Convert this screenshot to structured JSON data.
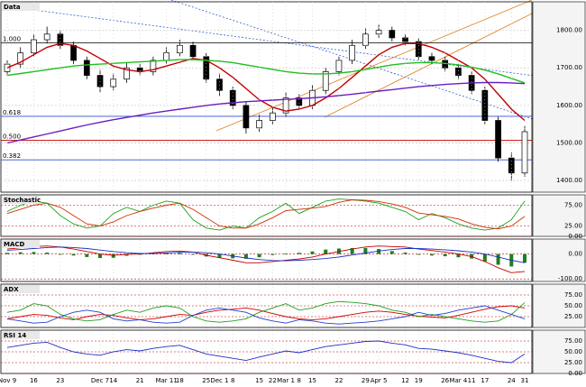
{
  "chart_data": [
    {
      "type": "candlestick",
      "title": "Data",
      "categories": [
        "Nov 9",
        null,
        "16",
        null,
        "23",
        null,
        null,
        "Dec 7",
        "14",
        null,
        "21",
        null,
        "Mar 11",
        "18",
        null,
        "25",
        "Dec 1",
        "8",
        null,
        "15",
        "22",
        "Mar 1",
        "8",
        "15",
        null,
        "22",
        null,
        "29",
        "Apr 5",
        null,
        "12",
        "19",
        null,
        "26",
        "Mar 4",
        "11",
        "17",
        null,
        "24",
        "31"
      ],
      "open": [
        1690,
        1710,
        1740,
        1775,
        1790,
        1760,
        1720,
        1680,
        1650,
        1670,
        1700,
        1690,
        1720,
        1740,
        1760,
        1730,
        1670,
        1640,
        1600,
        1540,
        1560,
        1580,
        1620,
        1600,
        1640,
        1690,
        1720,
        1760,
        1790,
        1800,
        1780,
        1770,
        1730,
        1720,
        1700,
        1680,
        1640,
        1560,
        1460,
        1420
      ],
      "high": [
        1720,
        1755,
        1790,
        1810,
        1800,
        1770,
        1730,
        1695,
        1685,
        1715,
        1710,
        1730,
        1755,
        1775,
        1770,
        1740,
        1685,
        1650,
        1610,
        1575,
        1595,
        1635,
        1630,
        1655,
        1700,
        1730,
        1775,
        1805,
        1815,
        1810,
        1790,
        1780,
        1740,
        1730,
        1710,
        1690,
        1650,
        1570,
        1475,
        1545
      ],
      "low": [
        1680,
        1700,
        1730,
        1765,
        1750,
        1710,
        1670,
        1635,
        1640,
        1660,
        1680,
        1680,
        1710,
        1730,
        1720,
        1660,
        1625,
        1590,
        1525,
        1530,
        1550,
        1570,
        1590,
        1590,
        1630,
        1680,
        1710,
        1750,
        1780,
        1770,
        1760,
        1720,
        1710,
        1690,
        1670,
        1630,
        1550,
        1450,
        1400,
        1410
      ],
      "close": [
        1710,
        1740,
        1775,
        1790,
        1760,
        1720,
        1680,
        1650,
        1670,
        1700,
        1690,
        1720,
        1740,
        1760,
        1730,
        1670,
        1640,
        1600,
        1540,
        1560,
        1580,
        1620,
        1600,
        1640,
        1690,
        1720,
        1760,
        1790,
        1800,
        1780,
        1770,
        1730,
        1720,
        1700,
        1680,
        1640,
        1560,
        1460,
        1420,
        1530
      ],
      "series": [
        {
          "color": "#c00000",
          "values": [
            1700,
            1715,
            1735,
            1755,
            1765,
            1760,
            1745,
            1725,
            1705,
            1695,
            1690,
            1695,
            1705,
            1715,
            1725,
            1720,
            1700,
            1675,
            1645,
            1615,
            1595,
            1585,
            1590,
            1600,
            1620,
            1645,
            1675,
            1705,
            1735,
            1755,
            1765,
            1765,
            1755,
            1740,
            1720,
            1700,
            1670,
            1630,
            1590,
            1560
          ]
        },
        {
          "color": "#1fbf1f",
          "values": [
            1680,
            1685,
            1690,
            1695,
            1700,
            1705,
            1708,
            1710,
            1712,
            1714,
            1716,
            1718,
            1720,
            1722,
            1722,
            1720,
            1718,
            1714,
            1708,
            1702,
            1696,
            1690,
            1686,
            1684,
            1684,
            1686,
            1690,
            1696,
            1702,
            1708,
            1712,
            1714,
            1714,
            1712,
            1708,
            1702,
            1694,
            1684,
            1672,
            1660
          ]
        },
        {
          "color": "#6a1fc0",
          "values": [
            1500,
            1508,
            1516,
            1524,
            1532,
            1540,
            1548,
            1555,
            1562,
            1568,
            1574,
            1580,
            1585,
            1590,
            1595,
            1600,
            1604,
            1607,
            1610,
            1612,
            1614,
            1616,
            1618,
            1620,
            1623,
            1626,
            1630,
            1634,
            1638,
            1642,
            1646,
            1650,
            1653,
            1656,
            1658,
            1660,
            1661,
            1661,
            1660,
            1658
          ]
        }
      ],
      "levels": [
        {
          "label": "1.000",
          "value": 1767,
          "color": "#000000"
        },
        {
          "label": "0.618",
          "value": 1571,
          "color": "#3050d0"
        },
        {
          "label": "0.500",
          "value": 1507,
          "color": "#c00000"
        },
        {
          "label": "0.382",
          "value": 1455,
          "color": "#3050d0"
        }
      ],
      "ylim": [
        1369,
        1876
      ],
      "yticks": [
        {
          "value": 1800,
          "label": "1800.00"
        },
        {
          "value": 1700,
          "label": "1700.00"
        },
        {
          "value": 1600,
          "label": "1600.00"
        },
        {
          "value": 1500,
          "label": "1500.00"
        },
        {
          "value": 1400,
          "label": "1400.00"
        }
      ]
    },
    {
      "type": "line",
      "title": "Stochastic",
      "series": [
        {
          "color": "#1f9f1f",
          "values": [
            60,
            75,
            85,
            80,
            50,
            30,
            20,
            25,
            55,
            70,
            60,
            75,
            85,
            80,
            40,
            20,
            15,
            25,
            20,
            45,
            60,
            80,
            55,
            70,
            85,
            90,
            88,
            85,
            80,
            70,
            60,
            40,
            55,
            45,
            30,
            20,
            15,
            20,
            40,
            85
          ]
        },
        {
          "color": "#d03000",
          "values": [
            55,
            65,
            75,
            80,
            70,
            50,
            30,
            25,
            35,
            50,
            60,
            68,
            75,
            80,
            65,
            45,
            25,
            20,
            20,
            30,
            45,
            62,
            65,
            68,
            72,
            82,
            88,
            87,
            84,
            78,
            70,
            56,
            52,
            48,
            42,
            30,
            22,
            18,
            25,
            48
          ]
        }
      ],
      "ylim": [
        0,
        100
      ],
      "yticks": [
        {
          "value": 0,
          "label": "0.00"
        },
        {
          "value": 25,
          "label": "25.00"
        },
        {
          "value": 75,
          "label": "75.00"
        }
      ]
    },
    {
      "type": "line",
      "title": "MACD",
      "bars": {
        "color": "#1f7f1f",
        "values": [
          5,
          7,
          8,
          6,
          0,
          -6,
          -12,
          -16,
          -15,
          -7,
          -2,
          3,
          6,
          5,
          0,
          -10,
          -15,
          -17,
          -19,
          -13,
          -4,
          2,
          5,
          10,
          18,
          22,
          24,
          24,
          20,
          12,
          6,
          -2,
          -6,
          -9,
          -13,
          -18,
          -30,
          -43,
          -50,
          -35
        ]
      },
      "series": [
        {
          "color": "#c00000",
          "values": [
            20,
            25,
            30,
            32,
            28,
            20,
            10,
            0,
            -5,
            -2,
            0,
            5,
            10,
            12,
            8,
            -5,
            -15,
            -25,
            -35,
            -35,
            -30,
            -25,
            -20,
            -12,
            0,
            10,
            20,
            28,
            32,
            30,
            28,
            20,
            14,
            8,
            0,
            -10,
            -30,
            -55,
            -75,
            -70
          ]
        },
        {
          "color": "#2030c0",
          "values": [
            15,
            18,
            22,
            26,
            28,
            26,
            22,
            16,
            10,
            5,
            2,
            2,
            4,
            7,
            8,
            5,
            0,
            -8,
            -16,
            -22,
            -26,
            -27,
            -25,
            -22,
            -18,
            -12,
            -4,
            4,
            12,
            18,
            22,
            22,
            20,
            17,
            13,
            8,
            0,
            -12,
            -25,
            -35
          ]
        }
      ],
      "ylim": [
        -110,
        60
      ],
      "yticks": [
        {
          "value": 0,
          "label": "0.00"
        },
        {
          "value": -100,
          "label": "-100.00"
        }
      ]
    },
    {
      "type": "line",
      "title": "ADX",
      "series": [
        {
          "color": "#d00000",
          "values": [
            20,
            25,
            30,
            28,
            22,
            18,
            25,
            30,
            28,
            22,
            18,
            20,
            25,
            30,
            28,
            35,
            40,
            42,
            45,
            40,
            32,
            25,
            20,
            18,
            20,
            25,
            30,
            35,
            38,
            35,
            30,
            26,
            24,
            22,
            28,
            35,
            42,
            48,
            50,
            45
          ]
        },
        {
          "color": "#1f9f1f",
          "values": [
            35,
            40,
            55,
            50,
            30,
            20,
            15,
            18,
            30,
            40,
            35,
            45,
            50,
            45,
            25,
            15,
            12,
            15,
            20,
            35,
            45,
            55,
            40,
            45,
            55,
            60,
            58,
            55,
            50,
            40,
            35,
            25,
            30,
            25,
            20,
            15,
            12,
            15,
            30,
            57
          ]
        },
        {
          "color": "#2040d0",
          "values": [
            20,
            15,
            10,
            12,
            25,
            35,
            40,
            35,
            20,
            15,
            18,
            12,
            10,
            12,
            28,
            40,
            45,
            40,
            35,
            22,
            15,
            10,
            18,
            15,
            10,
            8,
            10,
            12,
            15,
            20,
            25,
            35,
            28,
            32,
            40,
            45,
            50,
            40,
            30,
            20
          ]
        }
      ],
      "ylim": [
        0,
        100
      ],
      "yticks": [
        {
          "value": 25,
          "label": "25.00"
        },
        {
          "value": 50,
          "label": "50.00"
        },
        {
          "value": 75,
          "label": "75.00"
        }
      ]
    },
    {
      "type": "line",
      "title": "RSI 14",
      "series": [
        {
          "color": "#2030c0",
          "values": [
            60,
            65,
            70,
            72,
            60,
            50,
            45,
            42,
            50,
            55,
            52,
            58,
            62,
            65,
            55,
            45,
            40,
            35,
            30,
            38,
            45,
            52,
            48,
            55,
            62,
            66,
            70,
            74,
            75,
            70,
            66,
            58,
            56,
            52,
            48,
            42,
            35,
            28,
            25,
            45
          ]
        }
      ],
      "ylim": [
        0,
        100
      ],
      "yticks": [
        {
          "value": 0,
          "label": "0.00"
        },
        {
          "value": 25,
          "label": "25.00"
        },
        {
          "value": 50,
          "label": "50.00"
        },
        {
          "value": 75,
          "label": "75.00"
        }
      ]
    }
  ]
}
